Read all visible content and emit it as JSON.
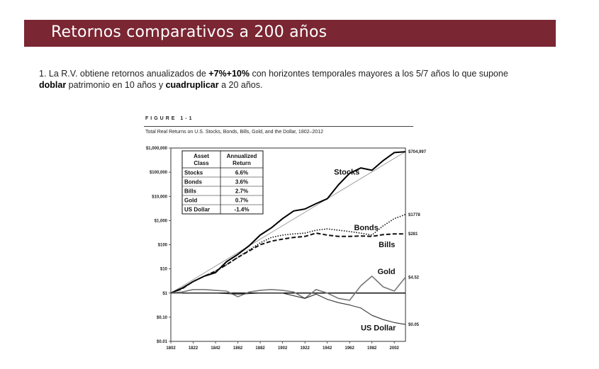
{
  "header": {
    "title": "Retornos comparativos a 200 años"
  },
  "bullet": {
    "p1": "1. La R.V. obtiene retornos anualizados de ",
    "b1": "+7%+10%",
    "p2": " con horizontes temporales mayores a los 5/7 años lo que supone ",
    "b2": "doblar",
    "p3": " patrimonio en 10 años y ",
    "b3": "cuadruplicar",
    "p4": " a 20 años."
  },
  "figure": {
    "label": "FIGURE 1-1",
    "caption": "Total Real Returns on U.S. Stocks, Bonds, Bills, Gold, and the Dollar, 1802–2012"
  },
  "chart_data": {
    "type": "line",
    "title": "Total Real Returns on U.S. Stocks, Bonds, Bills, Gold, and the Dollar, 1802–2012",
    "x_ticks": [
      1802,
      1822,
      1842,
      1862,
      1882,
      1902,
      1922,
      1942,
      1962,
      1982,
      2002
    ],
    "y_ticks": [
      "$0.01",
      "$0.10",
      "$1",
      "$10",
      "$100",
      "$1,000",
      "$10,000",
      "$100,000",
      "$1,000,000"
    ],
    "y_scale": "log",
    "xlim": [
      1802,
      2012
    ],
    "ylim": [
      0.01,
      1000000
    ],
    "series": [
      {
        "name": "Stocks",
        "style": "solid-thick",
        "end_label": "$704,997",
        "x": [
          1802,
          1812,
          1822,
          1832,
          1842,
          1852,
          1862,
          1872,
          1882,
          1892,
          1902,
          1912,
          1922,
          1932,
          1942,
          1952,
          1962,
          1972,
          1982,
          1992,
          2002,
          2012
        ],
        "y": [
          1,
          1.6,
          3,
          5,
          7,
          20,
          40,
          90,
          250,
          500,
          1200,
          2500,
          3000,
          5000,
          8000,
          30000,
          90000,
          150000,
          120000,
          300000,
          650000,
          704997
        ]
      },
      {
        "name": "Bonds",
        "style": "dotted",
        "end_label": "$1778",
        "x": [
          1802,
          1812,
          1822,
          1832,
          1842,
          1852,
          1862,
          1872,
          1882,
          1892,
          1902,
          1912,
          1922,
          1932,
          1942,
          1952,
          1962,
          1972,
          1982,
          1992,
          2002,
          2012
        ],
        "y": [
          1,
          1.5,
          3,
          5,
          8,
          15,
          30,
          60,
          120,
          200,
          250,
          280,
          300,
          400,
          450,
          400,
          350,
          300,
          250,
          600,
          1200,
          1778
        ]
      },
      {
        "name": "Bills",
        "style": "dashed",
        "end_label": "$281",
        "x": [
          1802,
          1812,
          1822,
          1832,
          1842,
          1852,
          1862,
          1872,
          1882,
          1892,
          1902,
          1912,
          1922,
          1932,
          1942,
          1952,
          1962,
          1972,
          1982,
          1992,
          2002,
          2012
        ],
        "y": [
          1,
          1.5,
          3,
          5,
          8,
          15,
          30,
          55,
          100,
          140,
          170,
          200,
          220,
          300,
          250,
          220,
          220,
          230,
          220,
          260,
          280,
          281
        ]
      },
      {
        "name": "Gold",
        "style": "solid-gray",
        "end_label": "$4.52",
        "x": [
          1802,
          1812,
          1822,
          1832,
          1842,
          1852,
          1862,
          1872,
          1882,
          1892,
          1902,
          1912,
          1922,
          1932,
          1942,
          1952,
          1962,
          1972,
          1982,
          1992,
          2002,
          2012
        ],
        "y": [
          1,
          1.1,
          1.4,
          1.4,
          1.3,
          1.2,
          0.7,
          1.1,
          1.3,
          1.4,
          1.3,
          1.1,
          0.6,
          1.4,
          1,
          0.6,
          0.5,
          2,
          5,
          1.8,
          1.2,
          4.52
        ]
      },
      {
        "name": "US Dollar",
        "style": "solid-thin",
        "end_label": "$0.05",
        "x": [
          1802,
          1822,
          1842,
          1862,
          1882,
          1902,
          1922,
          1932,
          1942,
          1952,
          1962,
          1972,
          1982,
          1992,
          2002,
          2012
        ],
        "y": [
          1,
          1,
          1,
          0.9,
          1,
          1,
          0.6,
          0.9,
          0.55,
          0.4,
          0.32,
          0.24,
          0.12,
          0.08,
          0.06,
          0.05
        ]
      }
    ],
    "table": {
      "headers": [
        "Asset Class",
        "Annualized Return"
      ],
      "rows": [
        [
          "Stocks",
          "6.6%"
        ],
        [
          "Bonds",
          "3.6%"
        ],
        [
          "Bills",
          "2.7%"
        ],
        [
          "Gold",
          "0.7%"
        ],
        [
          "US Dollar",
          "-1.4%"
        ]
      ]
    },
    "colors": {
      "stocks": "#000000",
      "bonds": "#111111",
      "bills": "#111111",
      "gold": "#777777",
      "dollar": "#333333",
      "trend": "#888888"
    }
  }
}
